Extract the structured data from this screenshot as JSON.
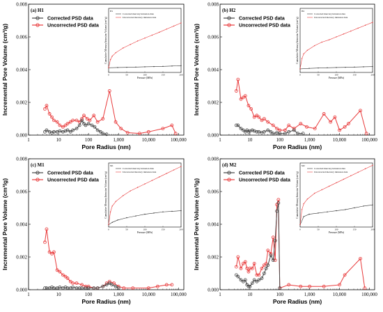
{
  "chart_data": [
    {
      "type": "line",
      "panel_label": "(a) H1",
      "xlabel": "Pore Radius (nm)",
      "ylabel": "Incremental Pore Volume (cm³/g)",
      "xscale": "log",
      "xlim": [
        1,
        150000
      ],
      "ylim": [
        0,
        0.008
      ],
      "xticks": [
        1,
        10,
        100,
        1000,
        10000,
        100000
      ],
      "xtick_labels": [
        "1",
        "10",
        "100",
        "1,000",
        "10,000",
        "100,000"
      ],
      "yticks": [
        0,
        0.002,
        0.004,
        0.006,
        0.008
      ],
      "ytick_labels": [
        "0.000",
        "0.002",
        "0.004",
        "0.006",
        "0.008"
      ],
      "legend_position": "top-left",
      "colors": {
        "corrected": "#444444",
        "uncorrected": "#e8393a"
      },
      "series": [
        {
          "name": "Corrected PSD data",
          "x": [
            3.5,
            4,
            5,
            6,
            7,
            9,
            11,
            14,
            17,
            20,
            25,
            30,
            40,
            50,
            60,
            70,
            80,
            100,
            130,
            160,
            200,
            250,
            300,
            400
          ],
          "y": [
            0.0002,
            0.0003,
            0.0002,
            0.00015,
            0.0002,
            0.0002,
            0.00025,
            0.0002,
            0.00025,
            0.0003,
            0.0002,
            0.0003,
            0.0004,
            0.0006,
            0.0009,
            0.0007,
            0.0006,
            0.0007,
            0.0006,
            0.0005,
            0.0003,
            0.0002,
            0.0001,
            5e-05
          ]
        },
        {
          "name": "Uncorrected PSD data",
          "x": [
            3.5,
            4,
            5,
            6,
            7,
            9,
            11,
            14,
            17,
            20,
            25,
            30,
            40,
            50,
            60,
            70,
            90,
            110,
            150,
            200,
            300,
            500,
            800,
            1200,
            2000,
            5000,
            10000,
            30000,
            60000,
            80000
          ],
          "y": [
            0.0016,
            0.0018,
            0.0013,
            0.0011,
            0.0009,
            0.0008,
            0.0006,
            0.0005,
            0.0006,
            0.0007,
            0.0008,
            0.0009,
            0.0009,
            0.0008,
            0.001,
            0.0012,
            0.001,
            0.0009,
            0.0012,
            0.0008,
            0.001,
            0.0027,
            0.0008,
            0.0004,
            0.00015,
            0.0001,
            0.0002,
            0.0004,
            0.0006,
            0.0001
          ]
        }
      ],
      "inset": {
        "label": "H1",
        "xlabel": "Pressure (MPa)",
        "ylabel": "Cumulative Mercury Intrusion Volume (cm³/g)",
        "xlim": [
          0,
          200
        ],
        "xticks": [
          0,
          50,
          100,
          150,
          200
        ],
        "legend": [
          "Corrected mercury intrusion data",
          "Uncorrected mercury intrusion data"
        ],
        "corrected": [
          [
            0,
            0.004
          ],
          [
            25,
            0.0042
          ],
          [
            50,
            0.0044
          ],
          [
            75,
            0.0046
          ],
          [
            100,
            0.0048
          ],
          [
            125,
            0.005
          ],
          [
            150,
            0.0052
          ],
          [
            175,
            0.0055
          ],
          [
            200,
            0.0058
          ]
        ],
        "uncorrected": [
          [
            0,
            0.004
          ],
          [
            5,
            0.011
          ],
          [
            10,
            0.014
          ],
          [
            20,
            0.017
          ],
          [
            40,
            0.021
          ],
          [
            60,
            0.024
          ],
          [
            80,
            0.027
          ],
          [
            100,
            0.0295
          ],
          [
            120,
            0.032
          ],
          [
            140,
            0.0345
          ],
          [
            160,
            0.0372
          ],
          [
            180,
            0.0398
          ],
          [
            200,
            0.0425
          ]
        ]
      }
    },
    {
      "type": "line",
      "panel_label": "(b) H2",
      "xlabel": "Pore Radius (nm)",
      "ylabel": "Incremental Pore Volume (cm³/g)",
      "xscale": "log",
      "xlim": [
        1,
        150000
      ],
      "ylim": [
        0,
        0.008
      ],
      "xticks": [
        1,
        10,
        100,
        1000,
        10000,
        100000
      ],
      "xtick_labels": [
        "1",
        "10",
        "100",
        "1,000",
        "10,000",
        "100,000"
      ],
      "yticks": [
        0,
        0.002,
        0.004,
        0.006,
        0.008
      ],
      "ytick_labels": [
        "0.000",
        "0.002",
        "0.004",
        "0.006",
        "0.008"
      ],
      "legend_position": "top-left",
      "colors": {
        "corrected": "#444444",
        "uncorrected": "#e8393a"
      },
      "series": [
        {
          "name": "Corrected PSD data",
          "x": [
            3.5,
            4,
            5,
            6,
            7,
            8,
            9,
            10,
            12,
            14,
            17,
            20,
            25,
            30,
            40,
            50,
            60,
            80,
            100,
            150,
            200,
            300,
            400,
            600
          ],
          "y": [
            0.0006,
            0.0006,
            0.0004,
            0.0003,
            0.0002,
            0.0003,
            0.0002,
            0.00025,
            0.0003,
            0.00025,
            0.0002,
            0.0002,
            0.00015,
            0.0002,
            0.0003,
            0.0002,
            0.0001,
            0.00015,
            0.0001,
            0.0001,
            0.0002,
            0.0003,
            0.0001,
            0.0001
          ]
        },
        {
          "name": "Uncorrected PSD data",
          "x": [
            3.5,
            4,
            5,
            6,
            7,
            9,
            11,
            14,
            17,
            20,
            25,
            30,
            40,
            60,
            80,
            100,
            150,
            200,
            300,
            500,
            800,
            1500,
            3000,
            5000,
            7000,
            10000,
            15000,
            20000,
            50000,
            80000
          ],
          "y": [
            0.0027,
            0.0034,
            0.0022,
            0.0023,
            0.0024,
            0.0018,
            0.0016,
            0.0011,
            0.0012,
            0.0011,
            0.0009,
            0.001,
            0.0008,
            0.0006,
            0.0004,
            0.0003,
            0.0003,
            0.0006,
            0.0004,
            0.0007,
            0.0005,
            0.0004,
            0.0013,
            0.0008,
            0.0011,
            0.0003,
            0.0005,
            0.0007,
            0.0015,
            0.0001
          ]
        }
      ],
      "inset": {
        "label": "H2",
        "xlabel": "Pressure (MPa)",
        "ylabel": "Cumulative Mercury Intrusion Volume (cm³/g)",
        "xlim": [
          0,
          200
        ],
        "xticks": [
          0,
          50,
          100,
          150,
          200
        ],
        "legend": [
          "Corrected mercury intrusion data",
          "Uncorrected mercury intrusion data"
        ],
        "corrected": [
          [
            0,
            0.003
          ],
          [
            25,
            0.0035
          ],
          [
            50,
            0.0038
          ],
          [
            75,
            0.004
          ],
          [
            100,
            0.0042
          ],
          [
            125,
            0.0044
          ],
          [
            150,
            0.0046
          ],
          [
            175,
            0.0048
          ],
          [
            200,
            0.005
          ]
        ],
        "uncorrected": [
          [
            0,
            0.003
          ],
          [
            5,
            0.012
          ],
          [
            10,
            0.016
          ],
          [
            20,
            0.019
          ],
          [
            40,
            0.023
          ],
          [
            60,
            0.026
          ],
          [
            80,
            0.028
          ],
          [
            100,
            0.0305
          ],
          [
            120,
            0.033
          ],
          [
            140,
            0.0355
          ],
          [
            160,
            0.038
          ],
          [
            180,
            0.0405
          ],
          [
            200,
            0.043
          ]
        ]
      }
    },
    {
      "type": "line",
      "panel_label": "(c) M1",
      "xlabel": "Pore Radius (nm)",
      "ylabel": "Incremental Pore Volume (cm³/g)",
      "xscale": "log",
      "xlim": [
        1,
        150000
      ],
      "ylim": [
        0,
        0.008
      ],
      "xticks": [
        1,
        10,
        100,
        1000,
        10000,
        100000
      ],
      "xtick_labels": [
        "1",
        "10",
        "100",
        "1,000",
        "10,000",
        "100,000"
      ],
      "yticks": [
        0,
        0.002,
        0.004,
        0.006,
        0.008
      ],
      "ytick_labels": [
        "0.000",
        "0.002",
        "0.004",
        "0.006",
        "0.008"
      ],
      "legend_position": "top-left",
      "colors": {
        "corrected": "#444444",
        "uncorrected": "#e8393a"
      },
      "series": [
        {
          "name": "Corrected PSD data",
          "x": [
            3.5,
            4,
            5,
            6,
            7,
            9,
            11,
            14,
            17,
            20,
            25,
            30,
            40,
            50,
            60,
            80,
            100,
            150,
            200,
            300,
            400,
            500,
            600,
            800,
            1000
          ],
          "y": [
            0.0001,
            0.0001,
            0.0001,
            0.00015,
            0.0001,
            0.0001,
            0.00015,
            0.0001,
            0.00015,
            0.0001,
            0.0001,
            0.00015,
            0.0001,
            0.0001,
            0.0001,
            0.0001,
            0.0001,
            0.0001,
            0.0001,
            0.0002,
            0.0003,
            0.0004,
            0.0003,
            0.0002,
            0.0001
          ]
        },
        {
          "name": "Uncorrected PSD data",
          "x": [
            3.5,
            4,
            5,
            6,
            7,
            9,
            11,
            14,
            17,
            20,
            25,
            30,
            40,
            60,
            80,
            100,
            150,
            200,
            300,
            400,
            500,
            700,
            1000,
            1500,
            3000,
            10000,
            20000,
            40000,
            60000
          ],
          "y": [
            0.0029,
            0.0037,
            0.0023,
            0.0022,
            0.0023,
            0.0012,
            0.0011,
            0.0009,
            0.0008,
            0.0007,
            0.0005,
            0.0004,
            0.0004,
            0.0003,
            0.0002,
            0.0002,
            0.0001,
            0.0001,
            0.0002,
            0.0004,
            0.0005,
            0.0004,
            0.0002,
            0.0001,
            0.0001,
            0.0001,
            0.0002,
            0.0003,
            0.0003
          ]
        }
      ],
      "inset": {
        "label": "M1",
        "xlabel": "Pressure (MPa)",
        "ylabel": "Cumulative Mercury Intrusion Volume (cm³/g)",
        "xlim": [
          0,
          200
        ],
        "xticks": [
          0,
          50,
          100,
          150,
          200
        ],
        "legend": [
          "Corrected mercury intrusion data",
          "Uncorrected mercury intrusion data"
        ],
        "corrected": [
          [
            0,
            0.002
          ],
          [
            10,
            0.004
          ],
          [
            25,
            0.006
          ],
          [
            50,
            0.008
          ],
          [
            75,
            0.0095
          ],
          [
            100,
            0.011
          ],
          [
            125,
            0.012
          ],
          [
            150,
            0.013
          ],
          [
            175,
            0.0135
          ],
          [
            200,
            0.014
          ]
        ],
        "uncorrected": [
          [
            0,
            0.002
          ],
          [
            5,
            0.013
          ],
          [
            10,
            0.018
          ],
          [
            20,
            0.022
          ],
          [
            40,
            0.027
          ],
          [
            60,
            0.031
          ],
          [
            80,
            0.034
          ],
          [
            100,
            0.037
          ],
          [
            120,
            0.04
          ],
          [
            140,
            0.043
          ],
          [
            160,
            0.046
          ],
          [
            180,
            0.049
          ],
          [
            200,
            0.052
          ]
        ]
      }
    },
    {
      "type": "line",
      "panel_label": "(d) M2",
      "xlabel": "Pore Radius (nm)",
      "ylabel": "Incremental Pore Volume (cm³/g)",
      "xscale": "log",
      "xlim": [
        1,
        150000
      ],
      "ylim": [
        0,
        0.008
      ],
      "xticks": [
        1,
        10,
        100,
        1000,
        10000,
        100000
      ],
      "xtick_labels": [
        "1",
        "10",
        "100",
        "1,000",
        "10,000",
        "100,000"
      ],
      "yticks": [
        0,
        0.002,
        0.004,
        0.006,
        0.008
      ],
      "ytick_labels": [
        "0.000",
        "0.002",
        "0.004",
        "0.006",
        "0.008"
      ],
      "legend_position": "top-left",
      "colors": {
        "corrected": "#444444",
        "uncorrected": "#e8393a"
      },
      "series": [
        {
          "name": "Corrected PSD data",
          "x": [
            3.5,
            4,
            5,
            6,
            7,
            8,
            9,
            10,
            12,
            14,
            17,
            20,
            25,
            30,
            35,
            40,
            50,
            60,
            70,
            80,
            90,
            100
          ],
          "y": [
            0.0009,
            0.0008,
            0.0006,
            0.0005,
            0.0006,
            0.0003,
            0.0002,
            0.0002,
            0.0004,
            0.0006,
            0.0005,
            0.0006,
            0.0007,
            0.001,
            0.0013,
            0.0015,
            0.0021,
            0.0018,
            0.003,
            0.0048,
            0.0053,
            0.0001
          ]
        },
        {
          "name": "Uncorrected PSD data",
          "x": [
            3.5,
            4,
            5,
            6,
            7,
            8,
            9,
            10,
            12,
            14,
            17,
            20,
            25,
            30,
            35,
            40,
            50,
            60,
            70,
            80,
            90,
            100,
            200,
            500,
            1000,
            3000,
            10000,
            15000,
            50000,
            70000
          ],
          "y": [
            0.0014,
            0.002,
            0.0013,
            0.0016,
            0.0017,
            0.0013,
            0.0011,
            0.0013,
            0.0013,
            0.0016,
            0.0009,
            0.0009,
            0.0013,
            0.0015,
            0.0016,
            0.0024,
            0.0022,
            0.0032,
            0.0018,
            0.0052,
            0.0055,
            0.0001,
            0.0003,
            0.0002,
            0.0002,
            0.0002,
            0.0003,
            0.0009,
            0.0019,
            0.0001
          ]
        }
      ],
      "inset": {
        "label": "M2",
        "xlabel": "Pressure (MPa)",
        "ylabel": "Cumulative Mercury Intrusion Volume (cm³/g)",
        "xlim": [
          0,
          200
        ],
        "xticks": [
          0,
          50,
          100,
          150,
          200
        ],
        "legend": [
          "Corrected mercury intrusion data",
          "Uncorrected mercury intrusion data"
        ],
        "corrected": [
          [
            0,
            0.002
          ],
          [
            10,
            0.009
          ],
          [
            25,
            0.011
          ],
          [
            50,
            0.012
          ],
          [
            75,
            0.013
          ],
          [
            100,
            0.014
          ],
          [
            125,
            0.015
          ],
          [
            150,
            0.0165
          ],
          [
            175,
            0.018
          ],
          [
            200,
            0.019
          ]
        ],
        "uncorrected": [
          [
            0,
            0.002
          ],
          [
            5,
            0.015
          ],
          [
            10,
            0.02
          ],
          [
            20,
            0.024
          ],
          [
            40,
            0.029
          ],
          [
            60,
            0.032
          ],
          [
            80,
            0.035
          ],
          [
            100,
            0.038
          ],
          [
            120,
            0.041
          ],
          [
            140,
            0.044
          ],
          [
            160,
            0.047
          ],
          [
            180,
            0.05
          ],
          [
            200,
            0.053
          ]
        ]
      }
    }
  ]
}
